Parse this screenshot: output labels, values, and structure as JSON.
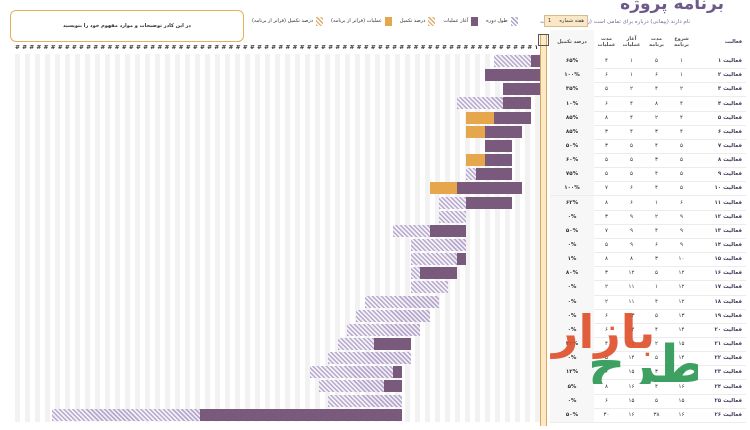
{
  "title": "برنامه پروژه",
  "subtitle": "نام دارند (پیمانی) درباره برای تمامی است (زمان و عملکرد) است",
  "current_period_label": "هفته شماره",
  "current_period_value": "1",
  "note": "در این کادر توضیحات و موارد مفهوم خود را بنویسید",
  "legend": [
    {
      "key": "plan",
      "label": "طول دوره"
    },
    {
      "key": "actual",
      "label": "آغاز عملیات"
    },
    {
      "key": "pct",
      "label": "درصد تکمیل"
    },
    {
      "key": "beyond",
      "label": "عملیات (فراتر از برنامه)"
    },
    {
      "key": "pct2",
      "label": "درصد تکمیل (فراتر از برنامه)"
    }
  ],
  "columns": {
    "activity": "فعالیت",
    "plan_start": "شروع برنامه",
    "plan_duration": "مدت برنامه",
    "actual_start": "آغاز عملیات",
    "actual_duration": "مدت عملیات",
    "percent": "درصد تکمیل"
  },
  "hash_row": "# # # # # # # # # # # # # # # # # # # # # # # # # # # # # # # # # # # # # # # # # # # # # # # # # # # # # # # # # # # # # # # # # # # # # # # # # ٩ ٨ ٧ ٦ ٥ ٤ ٣ ٢ ١",
  "rows": [
    {
      "name": "فعالیت ۱",
      "ps": "۱",
      "pd": "۵",
      "as": "۱",
      "ad": "۴",
      "pct": "۶۵%"
    },
    {
      "name": "فعالیت ۲",
      "ps": "۱",
      "pd": "۶",
      "as": "۱",
      "ad": "۶",
      "pct": "۱۰۰%"
    },
    {
      "name": "فعالیت ۳",
      "ps": "۲",
      "pd": "۴",
      "as": "۲",
      "ad": "۵",
      "pct": "۳۵%"
    },
    {
      "name": "فعالیت ۴",
      "ps": "۴",
      "pd": "۸",
      "as": "۴",
      "ad": "۶",
      "pct": "۱۰%"
    },
    {
      "name": "فعالیت ۵",
      "ps": "۴",
      "pd": "۲",
      "as": "۴",
      "ad": "۸",
      "pct": "۸۵%"
    },
    {
      "name": "فعالیت ۶",
      "ps": "۴",
      "pd": "۳",
      "as": "۴",
      "ad": "۳",
      "pct": "۸۵%"
    },
    {
      "name": "فعالیت ۷",
      "ps": "۵",
      "pd": "۴",
      "as": "۵",
      "ad": "۳",
      "pct": "۵۰%"
    },
    {
      "name": "فعالیت ۸",
      "ps": "۵",
      "pd": "۳",
      "as": "۵",
      "ad": "۵",
      "pct": "۶۰%"
    },
    {
      "name": "فعالیت ۹",
      "ps": "۵",
      "pd": "۴",
      "as": "۵",
      "ad": "۵",
      "pct": "۷۵%"
    },
    {
      "name": "فعالیت ۱۰",
      "ps": "۵",
      "pd": "۴",
      "as": "۶",
      "ad": "۷",
      "pct": "۱۰۰%"
    },
    {
      "name": "فعالیت ۱۱",
      "ps": "۶",
      "pd": "۱",
      "as": "۶",
      "ad": "۸",
      "pct": "۶۲%"
    },
    {
      "name": "فعالیت ۱۲",
      "ps": "۹",
      "pd": "۲",
      "as": "۹",
      "ad": "۳",
      "pct": "۰%"
    },
    {
      "name": "فعالیت ۱۳",
      "ps": "۹",
      "pd": "۴",
      "as": "۹",
      "ad": "۷",
      "pct": "۵۰%"
    },
    {
      "name": "فعالیت ۱۴",
      "ps": "۹",
      "pd": "۶",
      "as": "۹",
      "ad": "۵",
      "pct": "۰%"
    },
    {
      "name": "فعالیت ۱۵",
      "ps": "۱۰",
      "pd": "۳",
      "as": "۸",
      "ad": "۸",
      "pct": "۱%"
    },
    {
      "name": "فعالیت ۱۶",
      "ps": "۱۲",
      "pd": "۵",
      "as": "۱۲",
      "ad": "۳",
      "pct": "۸۰%"
    },
    {
      "name": "فعالیت ۱۷",
      "ps": "۱۲",
      "pd": "۱",
      "as": "۱۱",
      "ad": "۲",
      "pct": "۰%"
    },
    {
      "name": "فعالیت ۱۸",
      "ps": "۱۲",
      "pd": "۴",
      "as": "۱۱",
      "ad": "۲",
      "pct": "۰%"
    },
    {
      "name": "فعالیت ۱۹",
      "ps": "۱۳",
      "pd": "۵",
      "as": "۱۳",
      "ad": "۶",
      "pct": "۰%"
    },
    {
      "name": "فعالیت ۲۰",
      "ps": "۱۴",
      "pd": "۴",
      "as": "۱۴",
      "ad": "۶",
      "pct": "۰%"
    },
    {
      "name": "فعالیت ۲۱",
      "ps": "۱۵",
      "pd": "۲",
      "as": "۱۵",
      "ad": "۴",
      "pct": "۴۴%"
    },
    {
      "name": "فعالیت ۲۲",
      "ps": "۱۴",
      "pd": "۵",
      "as": "۱۴",
      "ad": "۵",
      "pct": "۰%"
    },
    {
      "name": "فعالیت ۲۳",
      "ps": "۱۵",
      "pd": "۳",
      "as": "۱۵",
      "ad": "۶",
      "pct": "۱۲%"
    },
    {
      "name": "فعالیت ۲۴",
      "ps": "۱۶",
      "pd": "۴",
      "as": "۱۶",
      "ad": "۸",
      "pct": "۵%"
    },
    {
      "name": "فعالیت ۲۵",
      "ps": "۱۵",
      "pd": "۵",
      "as": "۱۵",
      "ad": "۶",
      "pct": "۰%"
    },
    {
      "name": "فعالیت ۲۶",
      "ps": "۱۶",
      "pd": "۳۸",
      "as": "۱۶",
      "ad": "۳۰",
      "pct": "۵۰%"
    }
  ],
  "chart_data": {
    "type": "table",
    "bars": [
      {
        "plan": [
          1,
          5
        ],
        "actual": [
          1,
          1
        ],
        "beyond": [
          0,
          0
        ]
      },
      {
        "plan": [
          1,
          6
        ],
        "actual": [
          1,
          6
        ],
        "beyond": [
          0,
          0
        ]
      },
      {
        "plan": [
          1,
          4
        ],
        "actual": [
          1,
          4
        ],
        "beyond": [
          0,
          0
        ]
      },
      {
        "plan": [
          2,
          8
        ],
        "actual": [
          2,
          3
        ],
        "beyond": [
          0,
          0
        ]
      },
      {
        "plan": [
          3,
          4
        ],
        "actual": [
          2,
          4
        ],
        "beyond": [
          6,
          3
        ]
      },
      {
        "plan": [
          3,
          3
        ],
        "actual": [
          3,
          4
        ],
        "beyond": [
          7,
          2
        ]
      },
      {
        "plan": [
          4,
          3
        ],
        "actual": [
          4,
          3
        ],
        "beyond": [
          0,
          0
        ]
      },
      {
        "plan": [
          4,
          4
        ],
        "actual": [
          4,
          3
        ],
        "beyond": [
          7,
          2
        ]
      },
      {
        "plan": [
          4,
          5
        ],
        "actual": [
          4,
          4
        ],
        "beyond": [
          0,
          0
        ]
      },
      {
        "plan": [
          3,
          6
        ],
        "actual": [
          3,
          7
        ],
        "beyond": [
          10,
          3
        ]
      },
      {
        "plan": [
          4,
          8
        ],
        "actual": [
          4,
          5
        ],
        "beyond": [
          0,
          0
        ]
      },
      {
        "plan": [
          9,
          3
        ],
        "actual": [
          0,
          0
        ],
        "beyond": [
          0,
          0
        ]
      },
      {
        "plan": [
          9,
          8
        ],
        "actual": [
          9,
          4
        ],
        "beyond": [
          0,
          0
        ]
      },
      {
        "plan": [
          9,
          6
        ],
        "actual": [
          0,
          0
        ],
        "beyond": [
          0,
          0
        ]
      },
      {
        "plan": [
          9,
          6
        ],
        "actual": [
          9,
          1
        ],
        "beyond": [
          0,
          0
        ]
      },
      {
        "plan": [
          10,
          5
        ],
        "actual": [
          10,
          4
        ],
        "beyond": [
          0,
          0
        ]
      },
      {
        "plan": [
          11,
          4
        ],
        "actual": [
          0,
          0
        ],
        "beyond": [
          0,
          0
        ]
      },
      {
        "plan": [
          12,
          8
        ],
        "actual": [
          0,
          0
        ],
        "beyond": [
          0,
          0
        ]
      },
      {
        "plan": [
          13,
          8
        ],
        "actual": [
          0,
          0
        ],
        "beyond": [
          0,
          0
        ]
      },
      {
        "plan": [
          14,
          8
        ],
        "actual": [
          0,
          0
        ],
        "beyond": [
          0,
          0
        ]
      },
      {
        "plan": [
          15,
          8
        ],
        "actual": [
          15,
          4
        ],
        "beyond": [
          0,
          0
        ]
      },
      {
        "plan": [
          15,
          9
        ],
        "actual": [
          0,
          0
        ],
        "beyond": [
          0,
          0
        ]
      },
      {
        "plan": [
          16,
          10
        ],
        "actual": [
          16,
          1
        ],
        "beyond": [
          0,
          0
        ]
      },
      {
        "plan": [
          16,
          9
        ],
        "actual": [
          16,
          2
        ],
        "beyond": [
          0,
          0
        ]
      },
      {
        "plan": [
          16,
          8
        ],
        "actual": [
          0,
          0
        ],
        "beyond": [
          0,
          0
        ]
      },
      {
        "plan": [
          16,
          38
        ],
        "actual": [
          16,
          22
        ],
        "beyond": [
          0,
          0
        ]
      }
    ]
  }
}
